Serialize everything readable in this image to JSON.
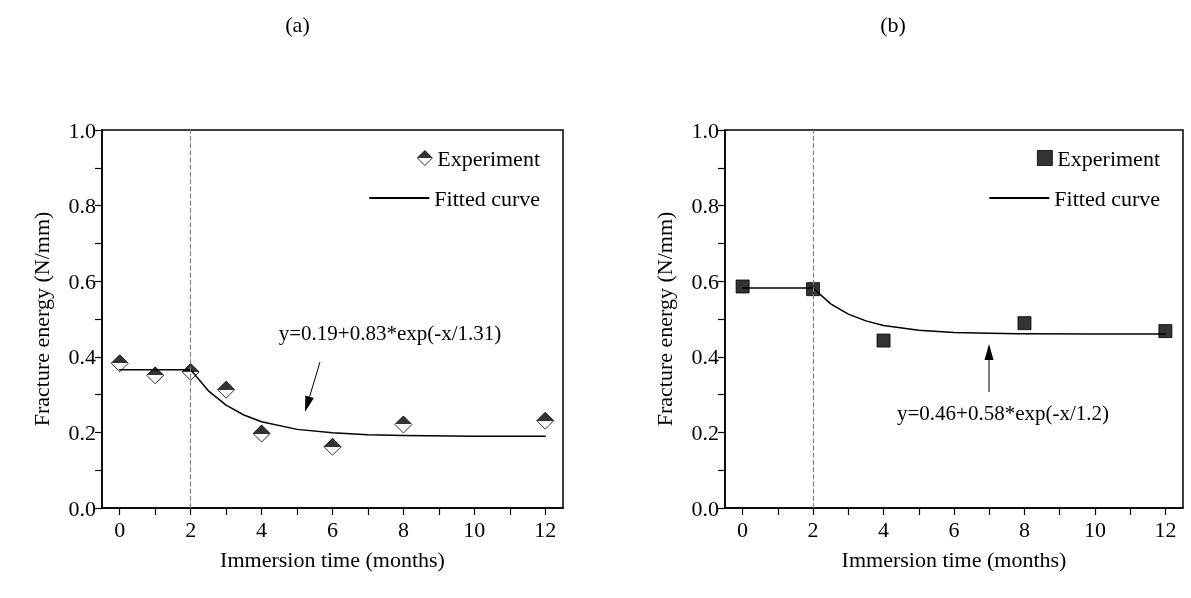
{
  "chart_data": [
    {
      "type": "scatter",
      "title": "(a)",
      "xlabel": "Immersion time (months)",
      "ylabel": "Fracture energy (N/mm)",
      "xlim": [
        -0.5,
        12.5
      ],
      "ylim": [
        0,
        1
      ],
      "xticks": [
        0,
        {
          "value": 1,
          "label": null
        },
        2,
        {
          "value": 3,
          "label": null
        },
        4,
        {
          "value": 5,
          "label": null
        },
        6,
        {
          "value": 7,
          "label": null
        },
        8,
        {
          "value": 9,
          "label": null
        },
        10,
        {
          "value": 11,
          "label": null
        },
        12
      ],
      "yticks": [
        {
          "value": 0,
          "label": "0.0"
        },
        {
          "value": 0.1,
          "label": null
        },
        0.2,
        {
          "value": 0.3,
          "label": null
        },
        0.4,
        {
          "value": 0.5,
          "label": null
        },
        0.6,
        {
          "value": 0.7,
          "label": null
        },
        0.8,
        {
          "value": 0.9,
          "label": null
        },
        {
          "value": 1,
          "label": "1.0"
        }
      ],
      "grid": false,
      "legend": "top right",
      "series": [
        {
          "name": "Experiment",
          "type": "scatter",
          "marker": "diamond",
          "color": "#000000",
          "x": [
            0,
            1,
            2,
            3,
            4,
            6,
            8,
            12
          ],
          "values": [
            0.383,
            0.351,
            0.36,
            0.313,
            0.197,
            0.162,
            0.221,
            0.231
          ]
        },
        {
          "name": "Fitted curve",
          "type": "line",
          "marker": "none",
          "line_style": "solid",
          "color": "#000000",
          "x": [
            0,
            2,
            2.5,
            3,
            3.5,
            4,
            5,
            6,
            7,
            8,
            10,
            12
          ],
          "values": [
            0.366,
            0.366,
            0.31,
            0.272,
            0.246,
            0.228,
            0.208,
            0.199,
            0.194,
            0.192,
            0.19,
            0.19
          ]
        }
      ],
      "ref_lines": [
        {
          "axis": "x",
          "value": 2,
          "color": "#808080",
          "line_style": "dashed"
        }
      ],
      "annotations": [
        "y=0.19+0.83*exp(-x/1.31)"
      ]
    },
    {
      "type": "scatter",
      "title": "(b)",
      "xlabel": "Immersion time (months)",
      "ylabel": "Fracture energy (N/mm)",
      "xlim": [
        -0.5,
        12.5
      ],
      "ylim": [
        0,
        1
      ],
      "xticks": [
        0,
        {
          "value": 1,
          "label": null
        },
        2,
        {
          "value": 3,
          "label": null
        },
        4,
        {
          "value": 5,
          "label": null
        },
        6,
        {
          "value": 7,
          "label": null
        },
        8,
        {
          "value": 9,
          "label": null
        },
        10,
        {
          "value": 11,
          "label": null
        },
        12
      ],
      "yticks": [
        {
          "value": 0,
          "label": "0.0"
        },
        {
          "value": 0.1,
          "label": null
        },
        0.2,
        {
          "value": 0.3,
          "label": null
        },
        0.4,
        {
          "value": 0.5,
          "label": null
        },
        0.6,
        {
          "value": 0.7,
          "label": null
        },
        0.8,
        {
          "value": 0.9,
          "label": null
        },
        {
          "value": 1,
          "label": "1.0"
        }
      ],
      "grid": false,
      "legend": "top right",
      "series": [
        {
          "name": "Experiment",
          "type": "scatter",
          "marker": "square",
          "color": "#000000",
          "x": [
            0,
            2,
            4,
            8,
            12
          ],
          "values": [
            0.586,
            0.579,
            0.443,
            0.489,
            0.468
          ]
        },
        {
          "name": "Fitted curve",
          "type": "line",
          "marker": "none",
          "line_style": "solid",
          "color": "#000000",
          "x": [
            0,
            2,
            2.5,
            3,
            3.5,
            4,
            5,
            6,
            7,
            8,
            10,
            12
          ],
          "values": [
            0.582,
            0.582,
            0.54,
            0.513,
            0.495,
            0.483,
            0.47,
            0.464,
            0.462,
            0.461,
            0.46,
            0.46
          ]
        }
      ],
      "ref_lines": [
        {
          "axis": "x",
          "value": 2,
          "color": "#808080",
          "line_style": "dashed"
        }
      ],
      "annotations": [
        "y=0.46+0.58*exp(-x/1.2)"
      ]
    }
  ]
}
